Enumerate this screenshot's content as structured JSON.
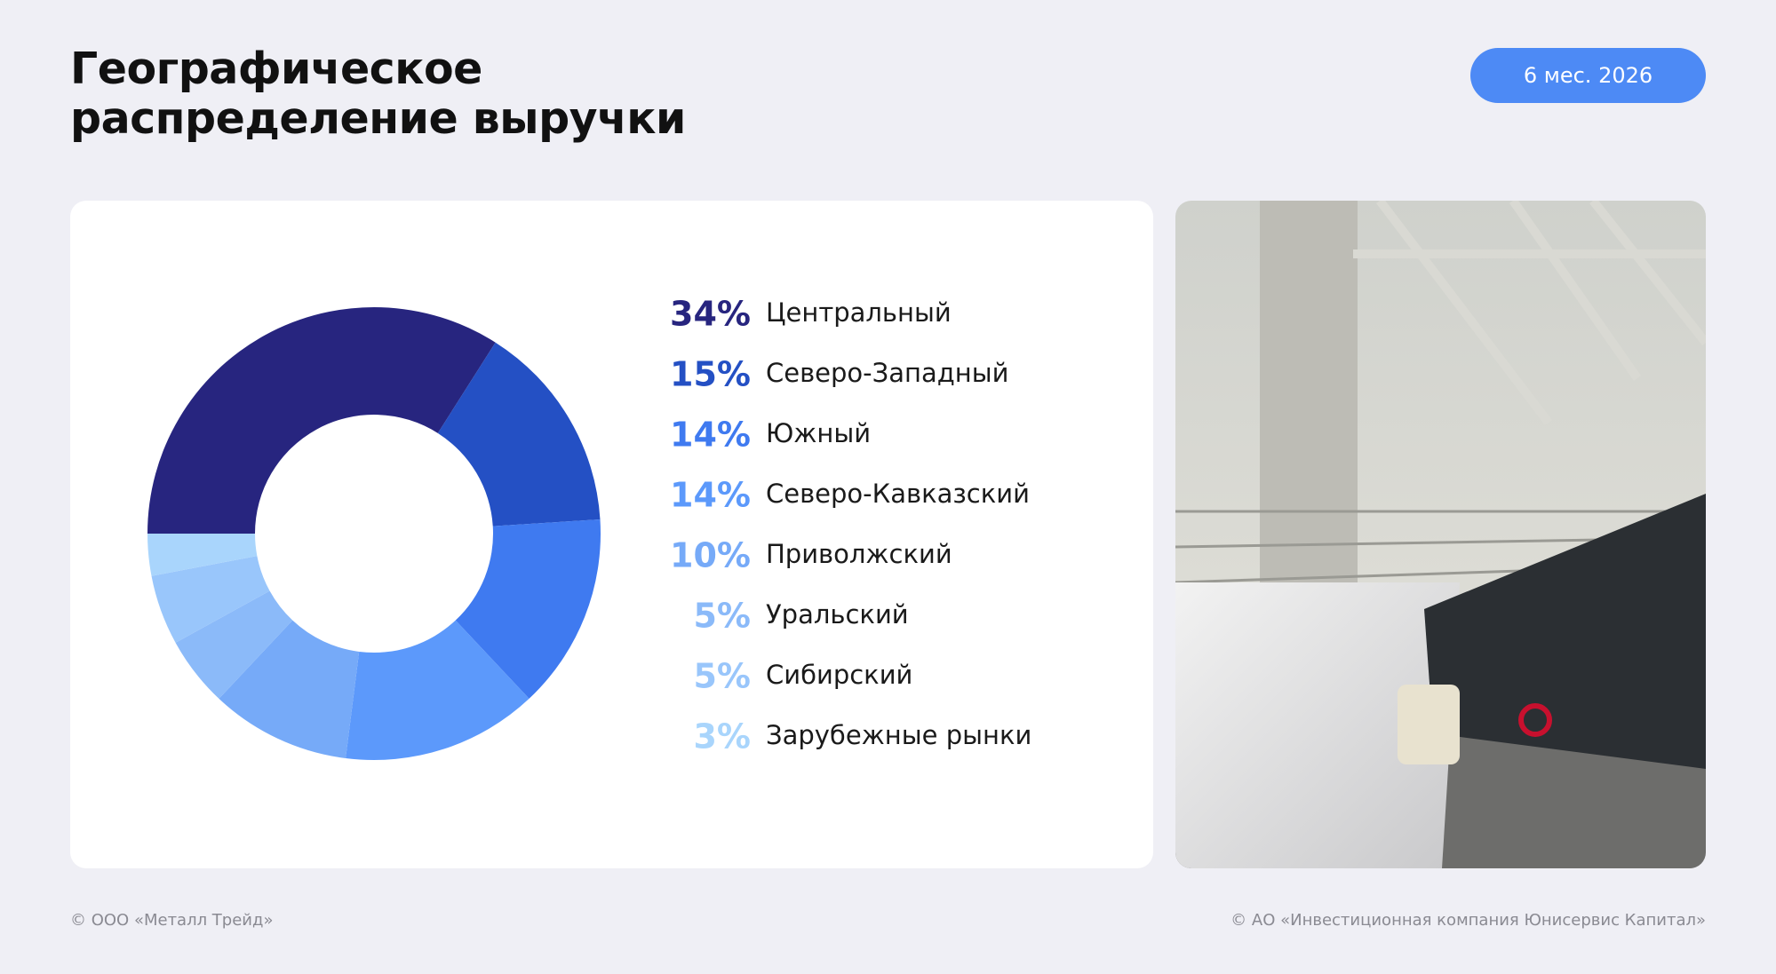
{
  "header": {
    "title": "Географическое\nраспределение выручки",
    "period": "6 мес. 2026"
  },
  "chart_data": {
    "type": "donut",
    "categories": [
      "Центральный",
      "Северо-Западный",
      "Южный",
      "Северо-Кавказский",
      "Приволжский",
      "Уральский",
      "Сибирский",
      "Зарубежные рынки"
    ],
    "values": [
      34,
      15,
      14,
      14,
      10,
      5,
      5,
      3
    ],
    "value_labels": [
      "34%",
      "15%",
      "14%",
      "14%",
      "10%",
      "5%",
      "5%",
      "3%"
    ],
    "colors": [
      "#27257f",
      "#2450c4",
      "#3f7af0",
      "#5c99fb",
      "#76aaf8",
      "#8bbaf9",
      "#99c6fb",
      "#a9d5fc"
    ]
  },
  "footer": {
    "left": "© ООО «Металл Трейд»",
    "right": "© АО «Инвестиционная компания Юнисервис Капитал»"
  }
}
